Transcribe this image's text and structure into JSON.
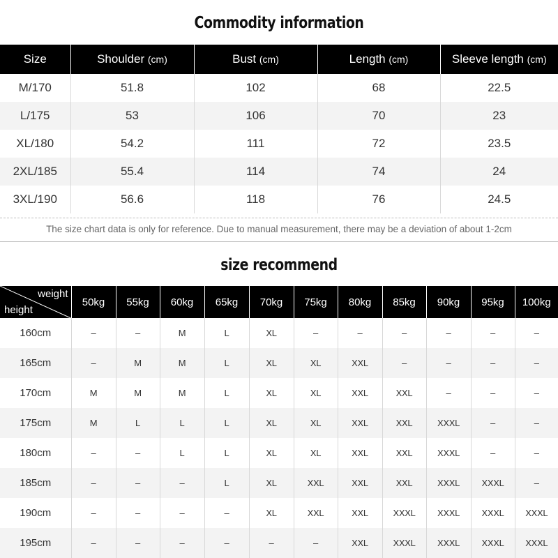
{
  "commodity": {
    "title": "Commodity information",
    "headers": [
      {
        "label": "Size",
        "unit": ""
      },
      {
        "label": "Shoulder",
        "unit": "(cm)"
      },
      {
        "label": "Bust",
        "unit": "(cm)"
      },
      {
        "label": "Length",
        "unit": "(cm)"
      },
      {
        "label": "Sleeve length",
        "unit": "(cm)"
      }
    ],
    "rows": [
      [
        "M/170",
        "51.8",
        "102",
        "68",
        "22.5"
      ],
      [
        "L/175",
        "53",
        "106",
        "70",
        "23"
      ],
      [
        "XL/180",
        "54.2",
        "111",
        "72",
        "23.5"
      ],
      [
        "2XL/185",
        "55.4",
        "114",
        "74",
        "24"
      ],
      [
        "3XL/190",
        "56.6",
        "118",
        "76",
        "24.5"
      ]
    ],
    "note": "The size chart data is only for reference. Due to manual measurement, there may be a deviation of about 1-2cm"
  },
  "recommend": {
    "title": "size recommend",
    "corner_weight": "weight",
    "corner_height": "height",
    "weights": [
      "50kg",
      "55kg",
      "60kg",
      "65kg",
      "70kg",
      "75kg",
      "80kg",
      "85kg",
      "90kg",
      "95kg",
      "100kg"
    ],
    "rows": [
      {
        "height": "160cm",
        "sizes": [
          "–",
          "–",
          "M",
          "L",
          "XL",
          "–",
          "–",
          "–",
          "–",
          "–",
          "–"
        ]
      },
      {
        "height": "165cm",
        "sizes": [
          "–",
          "M",
          "M",
          "L",
          "XL",
          "XL",
          "XXL",
          "–",
          "–",
          "–",
          "–"
        ]
      },
      {
        "height": "170cm",
        "sizes": [
          "M",
          "M",
          "M",
          "L",
          "XL",
          "XL",
          "XXL",
          "XXL",
          "–",
          "–",
          "–"
        ]
      },
      {
        "height": "175cm",
        "sizes": [
          "M",
          "L",
          "L",
          "L",
          "XL",
          "XL",
          "XXL",
          "XXL",
          "XXXL",
          "–",
          "–"
        ]
      },
      {
        "height": "180cm",
        "sizes": [
          "–",
          "–",
          "L",
          "L",
          "XL",
          "XL",
          "XXL",
          "XXL",
          "XXXL",
          "–",
          "–"
        ]
      },
      {
        "height": "185cm",
        "sizes": [
          "–",
          "–",
          "–",
          "L",
          "XL",
          "XXL",
          "XXL",
          "XXL",
          "XXXL",
          "XXXL",
          "–"
        ]
      },
      {
        "height": "190cm",
        "sizes": [
          "–",
          "–",
          "–",
          "–",
          "XL",
          "XXL",
          "XXL",
          "XXXL",
          "XXXL",
          "XXXL",
          "XXXL"
        ]
      },
      {
        "height": "195cm",
        "sizes": [
          "–",
          "–",
          "–",
          "–",
          "–",
          "–",
          "XXL",
          "XXXL",
          "XXXL",
          "XXXL",
          "XXXL"
        ]
      }
    ]
  }
}
